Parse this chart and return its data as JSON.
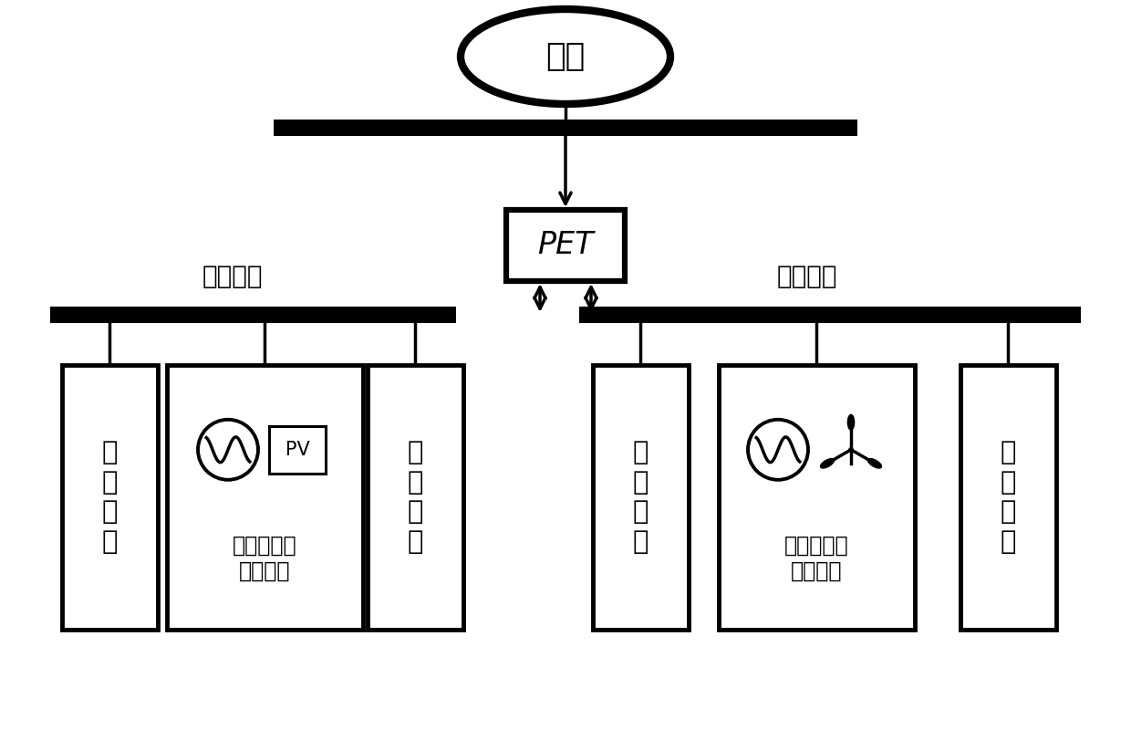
{
  "bg_color": "#ffffff",
  "line_color": "#000000",
  "main_grid_label": "主网",
  "pet_label": "PET",
  "dc_bus_label": "直流母线",
  "ac_bus_label": "交流母线",
  "dc_load_label": "直\n流\n负\n荷",
  "dc_des_label": "分布式能源\n直流并网",
  "dc_storage_label": "储\n能\n装\n置",
  "ac_load_label": "交\n流\n负\n荷",
  "ac_des_label": "分布式能源\n交流并网",
  "ac_storage_label": "储\n能\n装\n置",
  "pv_label": "PV"
}
